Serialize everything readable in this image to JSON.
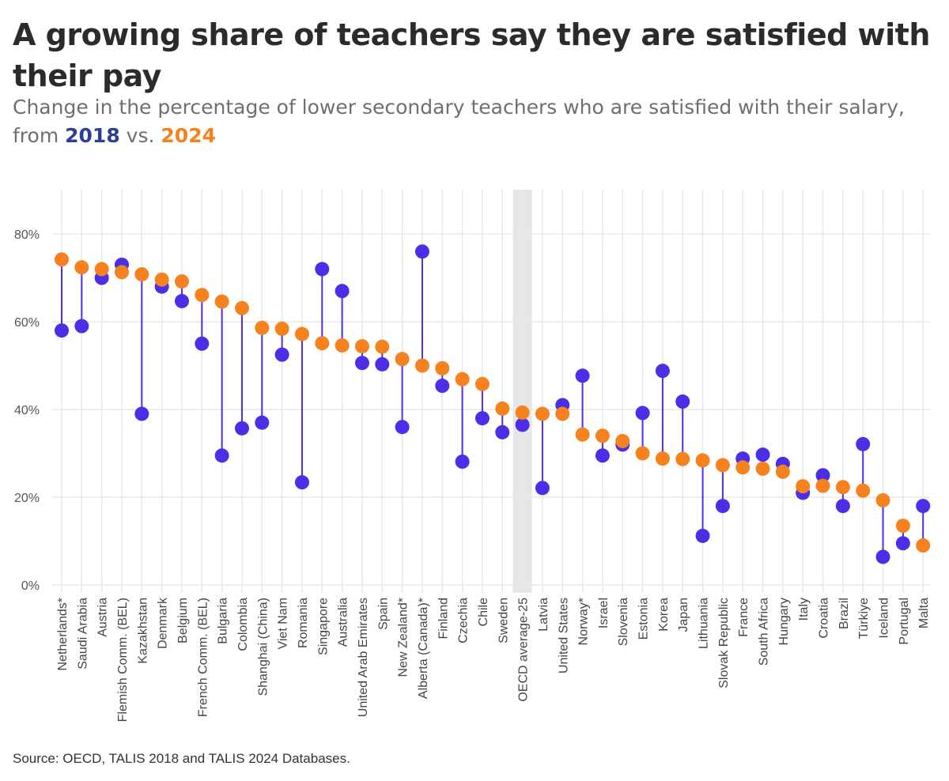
{
  "header": {
    "title": "A growing share of teachers say they are satisfied with their pay",
    "subtitle_prefix": "Change in the percentage of lower secondary teachers who are satisfied with their salary, from ",
    "year_a": "2018",
    "subtitle_mid": " vs. ",
    "year_b": "2024"
  },
  "colors": {
    "series_2018": "#4c2ee6",
    "series_2024": "#f5821f",
    "connector": "#4c2ee6",
    "highlight_band": "#e6e6e6",
    "grid": "#e8e8e8"
  },
  "chart_data": {
    "type": "scatter",
    "title": "A growing share of teachers say they are satisfied with their pay",
    "ylim": [
      0,
      90
    ],
    "yticks": [
      0,
      20,
      40,
      60,
      80
    ],
    "ytick_labels": [
      "0%",
      "20%",
      "40%",
      "60%",
      "80%"
    ],
    "grid": true,
    "highlighted_category": "OECD average-25",
    "categories": [
      "Netherlands*",
      "Saudi Arabia",
      "Austria",
      "Flemish Comm. (BEL)",
      "Kazakhstan",
      "Denmark",
      "Belgium",
      "French Comm. (BEL)",
      "Bulgaria",
      "Colombia",
      "Shanghai (China)",
      "Viet Nam",
      "Romania",
      "Singapore",
      "Australia",
      "United Arab Emirates",
      "Spain",
      "New Zealand*",
      "Alberta (Canada)*",
      "Finland",
      "Czechia",
      "Chile",
      "Sweden",
      "OECD average-25",
      "Latvia",
      "United States",
      "Norway*",
      "Israel",
      "Slovenia",
      "Estonia",
      "Korea",
      "Japan",
      "Lithuania",
      "Slovak Republic",
      "France",
      "South Africa",
      "Hungary",
      "Italy",
      "Croatia",
      "Brazil",
      "Türkiye",
      "Iceland",
      "Portugal",
      "Malta"
    ],
    "series": [
      {
        "name": "2018",
        "values": [
          58,
          59,
          70,
          73,
          39,
          68,
          64.7,
          55,
          29.5,
          35.7,
          37,
          52.5,
          23.4,
          72,
          67,
          50.6,
          50.3,
          36,
          76,
          45.4,
          28.1,
          38,
          34.8,
          36.5,
          22.1,
          41,
          47.7,
          29.5,
          32,
          39.2,
          48.8,
          41.8,
          11.2,
          18,
          28.8,
          29.7,
          27.6,
          21,
          25,
          18,
          32.1,
          6.4,
          9.5,
          18
        ]
      },
      {
        "name": "2024",
        "values": [
          74.2,
          72.4,
          72,
          71.3,
          70.8,
          69.6,
          69.2,
          66.1,
          64.6,
          63.1,
          58.6,
          58.4,
          57.2,
          55.1,
          54.6,
          54.4,
          54.3,
          51.5,
          50,
          49.4,
          46.9,
          45.8,
          40.2,
          39.3,
          39,
          39,
          34.3,
          34,
          32.8,
          30,
          28.8,
          28.7,
          28.4,
          27.3,
          26.8,
          26.5,
          25.8,
          22.5,
          22.6,
          22.3,
          21.5,
          19.3,
          13.5,
          9
        ]
      }
    ]
  },
  "footer": {
    "source": "Source: OECD, TALIS 2018 and TALIS 2024 Databases."
  }
}
